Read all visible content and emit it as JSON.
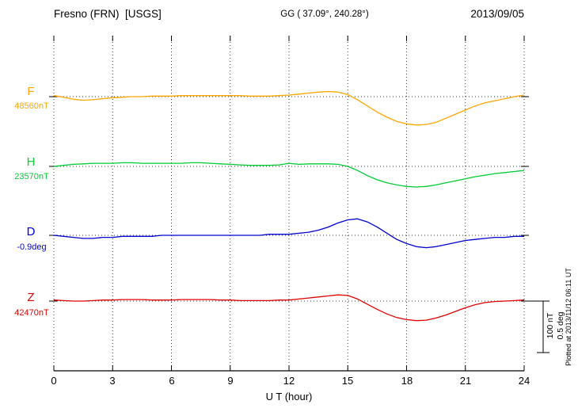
{
  "header": {
    "station": "Fresno (FRN)  [USGS]",
    "gg": "GG ( 37.09°, 240.28°)",
    "date": "2013/09/05"
  },
  "channels": [
    {
      "id": "F",
      "label": "F",
      "baseline_label": "48560nT",
      "color": "#FFA500"
    },
    {
      "id": "H",
      "label": "H",
      "baseline_label": "23570nT",
      "color": "#00CC33"
    },
    {
      "id": "D",
      "label": "D",
      "baseline_label": "-0.9deg",
      "color": "#0000D0"
    },
    {
      "id": "Z",
      "label": "Z",
      "baseline_label": "42470nT",
      "color": "#E00000"
    }
  ],
  "x_axis": {
    "label": "U T (hour)",
    "ticks": [
      "0",
      "3",
      "6",
      "9",
      "12",
      "15",
      "18",
      "21",
      "24"
    ],
    "min": 0,
    "max": 24
  },
  "scale_bar": {
    "nT": "100 nT",
    "deg": "0.5 deg"
  },
  "plotted_note": "Plotted at 2013/11/12 06:11 UT",
  "chart_data": {
    "type": "line",
    "title": "Fresno (FRN) [USGS] magnetogram 2013/09/05",
    "xlabel": "U T (hour)",
    "x_start": 0,
    "x_step": 0.5,
    "x_end": 24,
    "xlim": [
      0,
      24
    ],
    "grid": "dotted vertical lines every 3 hours; dotted horizontal baseline per channel",
    "legend_position": "left margin channel labels",
    "scale_division": {
      "nT": 100,
      "deg": 0.5
    },
    "series": [
      {
        "name": "F",
        "unit": "nT",
        "baseline_value": 48560,
        "color": "#FFA500",
        "offsets": [
          2,
          -1,
          -5,
          -7,
          -6,
          -4,
          -2,
          -1,
          0,
          0,
          1,
          1,
          1,
          2,
          2,
          2,
          2,
          2,
          2,
          2,
          1,
          1,
          1,
          2,
          3,
          5,
          7,
          9,
          10,
          9,
          4,
          -6,
          -18,
          -30,
          -40,
          -48,
          -53,
          -55,
          -54,
          -50,
          -42,
          -34,
          -26,
          -18,
          -12,
          -8,
          -4,
          0,
          3
        ]
      },
      {
        "name": "H",
        "unit": "nT",
        "baseline_value": 23570,
        "color": "#00CC33",
        "offsets": [
          0,
          2,
          4,
          5,
          6,
          6,
          6,
          7,
          7,
          6,
          6,
          6,
          6,
          6,
          7,
          7,
          6,
          5,
          4,
          3,
          2,
          2,
          2,
          3,
          6,
          4,
          5,
          5,
          5,
          4,
          0,
          -8,
          -18,
          -26,
          -32,
          -36,
          -39,
          -40,
          -39,
          -36,
          -32,
          -28,
          -24,
          -20,
          -17,
          -14,
          -12,
          -10,
          -8
        ]
      },
      {
        "name": "D",
        "unit": "deg",
        "baseline_value": -0.9,
        "color": "#0000D0",
        "offsets": [
          0,
          -0.01,
          -0.02,
          -0.03,
          -0.03,
          -0.02,
          -0.02,
          -0.01,
          -0.01,
          -0.01,
          -0.01,
          0,
          0,
          0,
          0,
          0,
          0,
          0,
          0,
          0,
          0,
          0,
          0.01,
          0.01,
          0.01,
          0.02,
          0.03,
          0.05,
          0.08,
          0.12,
          0.15,
          0.16,
          0.13,
          0.08,
          0.02,
          -0.04,
          -0.08,
          -0.11,
          -0.12,
          -0.11,
          -0.09,
          -0.07,
          -0.05,
          -0.04,
          -0.03,
          -0.02,
          -0.02,
          -0.01,
          -0.01
        ]
      },
      {
        "name": "Z",
        "unit": "nT",
        "baseline_value": 42470,
        "color": "#E00000",
        "offsets": [
          2,
          1,
          0,
          0,
          1,
          2,
          2,
          3,
          3,
          3,
          2,
          2,
          2,
          3,
          3,
          3,
          3,
          2,
          2,
          1,
          1,
          1,
          1,
          2,
          2,
          4,
          6,
          8,
          10,
          12,
          11,
          4,
          -6,
          -16,
          -25,
          -32,
          -36,
          -38,
          -37,
          -33,
          -27,
          -20,
          -13,
          -7,
          -3,
          -1,
          0,
          1,
          2
        ]
      }
    ]
  }
}
